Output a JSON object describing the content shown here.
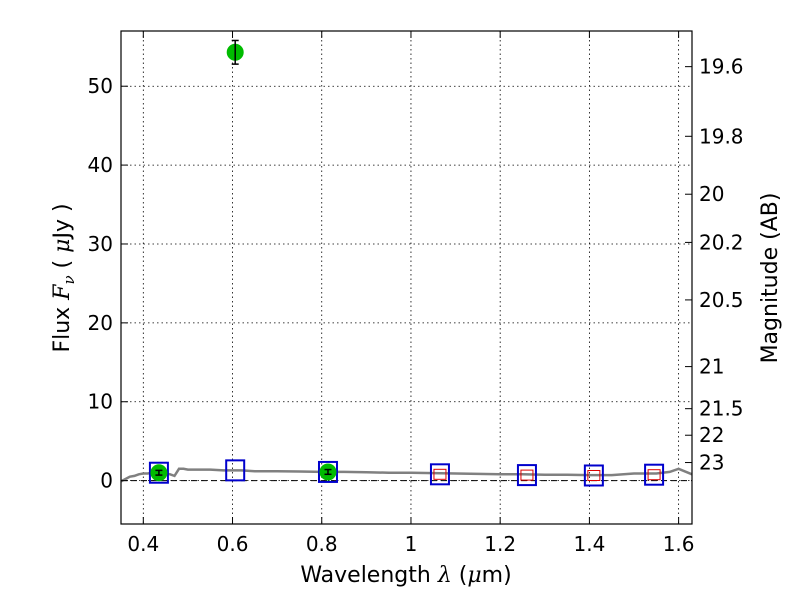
{
  "chart_data": {
    "type": "scatter",
    "xlabel": {
      "pre": "Wavelength  ",
      "sym": "λ",
      "post": " (",
      "mu": "μ",
      "unit": "m)"
    },
    "ylabel": {
      "pre": "Flux  ",
      "sym": "F",
      "sub": "ν",
      "post": "  ( ",
      "mu": "μ",
      "unit": "Jy )"
    },
    "y2label": "Magnitude (AB)",
    "xlim": [
      0.35,
      1.63
    ],
    "ylim": [
      -5.5,
      57
    ],
    "x_ticks": [
      0.4,
      0.6,
      0.8,
      1.0,
      1.2,
      1.4,
      1.6
    ],
    "x_tick_labels": [
      "0.4",
      "0.6",
      "0.8",
      "1",
      "1.2",
      "1.4",
      "1.6"
    ],
    "y_ticks": [
      0,
      10,
      20,
      30,
      40,
      50
    ],
    "y_tick_labels": [
      "0",
      "10",
      "20",
      "30",
      "40",
      "50"
    ],
    "mag_ticks": [
      19.6,
      19.8,
      20,
      20.2,
      20.5,
      21,
      21.5,
      22,
      23
    ],
    "mag_tick_labels": [
      "19.6",
      "19.8",
      "20",
      "20.2",
      "20.5",
      "21",
      "21.5",
      "22",
      "23"
    ],
    "grid": true,
    "zero_line": true,
    "colors": {
      "observed": "#00bb00",
      "model": "#0000cc",
      "model_inner": "#dd0000",
      "spectrum": "#808080"
    },
    "observed": [
      {
        "x": 0.435,
        "y": 1.0,
        "err": 0.3
      },
      {
        "x": 0.606,
        "y": 54.3,
        "err": 1.5
      },
      {
        "x": 0.814,
        "y": 1.1,
        "err": 0.3
      }
    ],
    "model": [
      {
        "x": 0.435,
        "y": 1.0,
        "inner": false
      },
      {
        "x": 0.606,
        "y": 1.3,
        "inner": false
      },
      {
        "x": 0.814,
        "y": 1.1,
        "inner": false
      },
      {
        "x": 1.065,
        "y": 0.8,
        "inner": true
      },
      {
        "x": 1.26,
        "y": 0.7,
        "inner": true
      },
      {
        "x": 1.41,
        "y": 0.65,
        "inner": true
      },
      {
        "x": 1.545,
        "y": 0.75,
        "inner": true
      }
    ],
    "spectrum": {
      "x": [
        0.35,
        0.36,
        0.37,
        0.38,
        0.39,
        0.4,
        0.41,
        0.42,
        0.43,
        0.44,
        0.45,
        0.46,
        0.47,
        0.48,
        0.49,
        0.5,
        0.52,
        0.55,
        0.58,
        0.6,
        0.62,
        0.65,
        0.7,
        0.75,
        0.8,
        0.85,
        0.9,
        0.95,
        1.0,
        1.05,
        1.1,
        1.15,
        1.2,
        1.25,
        1.3,
        1.35,
        1.4,
        1.45,
        1.5,
        1.55,
        1.58,
        1.6,
        1.63
      ],
      "y": [
        -0.1,
        0.2,
        0.5,
        0.6,
        0.8,
        0.9,
        0.9,
        1.0,
        1.0,
        1.0,
        0.9,
        0.8,
        0.6,
        1.5,
        1.5,
        1.4,
        1.4,
        1.4,
        1.3,
        1.3,
        1.3,
        1.2,
        1.2,
        1.15,
        1.1,
        1.1,
        1.05,
        1.0,
        1.0,
        0.95,
        0.9,
        0.85,
        0.8,
        0.8,
        0.75,
        0.75,
        0.7,
        0.7,
        0.9,
        0.9,
        1.1,
        1.5,
        0.8
      ]
    }
  }
}
